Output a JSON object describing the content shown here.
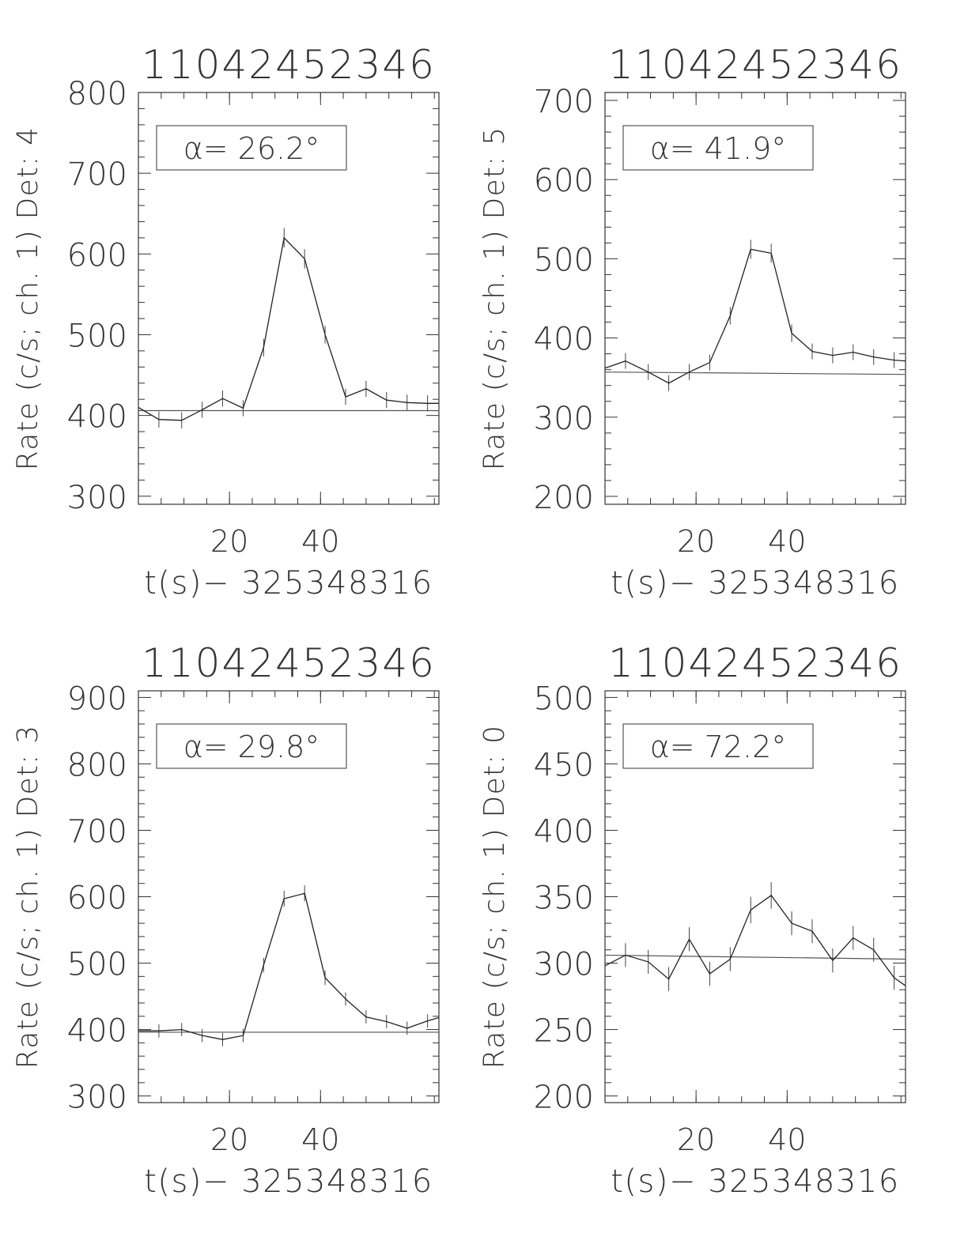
{
  "chart_data": [
    {
      "type": "line",
      "title": "11042452346",
      "xlabel": "t(s)− 325348316",
      "ylabel": "Rate (c/s; ch. 1) Det: 4",
      "annotation": "α= 26.2°",
      "xlim": [
        0,
        66
      ],
      "ylim": [
        290,
        800
      ],
      "xticks": [
        20,
        40
      ],
      "yticks": [
        300,
        400,
        500,
        600,
        700,
        800
      ],
      "x": [
        0,
        4.5,
        9.5,
        14,
        18.5,
        23,
        27.5,
        32,
        36.5,
        41,
        45.5,
        50,
        54.5,
        59,
        63.5,
        66
      ],
      "values": [
        410,
        395,
        394,
        407,
        421,
        409,
        484,
        620,
        594,
        500,
        423,
        433,
        419,
        416,
        415,
        415
      ],
      "errors": [
        10,
        10,
        10,
        10,
        10,
        10,
        11,
        12,
        12,
        11,
        10,
        10,
        10,
        10,
        10,
        10
      ],
      "background": [
        406,
        406
      ],
      "grid": false
    },
    {
      "type": "line",
      "title": "11042452346",
      "xlabel": "t(s)− 325348316",
      "ylabel": "Rate (c/s; ch. 1) Det: 5",
      "annotation": "α= 41.9°",
      "xlim": [
        0,
        66
      ],
      "ylim": [
        190,
        710
      ],
      "xticks": [
        20,
        40
      ],
      "yticks": [
        200,
        300,
        400,
        500,
        600,
        700
      ],
      "x": [
        0,
        4.5,
        9.5,
        14,
        18.5,
        23,
        27.5,
        32,
        36.5,
        41,
        45.5,
        50,
        54.5,
        59,
        63.5,
        66
      ],
      "values": [
        362,
        371,
        357,
        343,
        357,
        369,
        428,
        512,
        507,
        406,
        383,
        378,
        382,
        376,
        372,
        371
      ],
      "errors": [
        10,
        10,
        10,
        10,
        10,
        10,
        11,
        12,
        12,
        11,
        10,
        10,
        10,
        10,
        10,
        10
      ],
      "background": [
        357,
        354
      ],
      "grid": false
    },
    {
      "type": "line",
      "title": "11042452346",
      "xlabel": "t(s)− 325348316",
      "ylabel": "Rate (c/s; ch. 1) Det: 3",
      "annotation": "α= 29.8°",
      "xlim": [
        0,
        66
      ],
      "ylim": [
        290,
        910
      ],
      "xticks": [
        20,
        40
      ],
      "yticks": [
        300,
        400,
        500,
        600,
        700,
        800,
        900
      ],
      "x": [
        0,
        4.5,
        9.5,
        14,
        18.5,
        23,
        27.5,
        32,
        36.5,
        41,
        45.5,
        50,
        54.5,
        59,
        63.5,
        66
      ],
      "values": [
        398,
        398,
        400,
        391,
        385,
        391,
        497,
        597,
        605,
        478,
        446,
        419,
        412,
        402,
        413,
        418
      ],
      "errors": [
        10,
        10,
        10,
        10,
        10,
        10,
        11,
        12,
        12,
        11,
        10,
        10,
        10,
        10,
        10,
        10
      ],
      "background": [
        396,
        396
      ],
      "grid": false
    },
    {
      "type": "line",
      "title": "11042452346",
      "xlabel": "t(s)− 325348316",
      "ylabel": "Rate (c/s; ch. 1) Det: 0",
      "annotation": "α= 72.2°",
      "xlim": [
        0,
        66
      ],
      "ylim": [
        195,
        505
      ],
      "xticks": [
        20,
        40
      ],
      "yticks": [
        200,
        250,
        300,
        350,
        400,
        450,
        500
      ],
      "x": [
        0,
        4.5,
        9.5,
        14,
        18.5,
        23,
        27.5,
        32,
        36.5,
        41,
        45.5,
        50,
        54.5,
        59,
        63.5,
        66
      ],
      "values": [
        298,
        306,
        301,
        288,
        318,
        292,
        303,
        340,
        351,
        330,
        324,
        302,
        319,
        310,
        289,
        283
      ],
      "errors": [
        9,
        9,
        9,
        9,
        9,
        9,
        9,
        10,
        10,
        9,
        9,
        9,
        9,
        9,
        9,
        9
      ],
      "background": [
        306,
        303
      ],
      "grid": false
    }
  ]
}
